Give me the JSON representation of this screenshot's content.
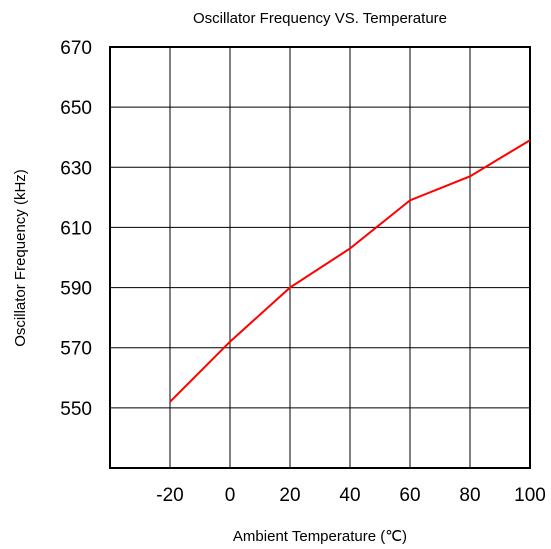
{
  "chart_data": {
    "type": "line",
    "title": "Oscillator Frequency VS. Temperature",
    "xlabel": "Ambient Temperature (℃)",
    "ylabel": "Oscillator Frequency (kHz)",
    "xlim": [
      -40,
      100
    ],
    "ylim": [
      530,
      670
    ],
    "xticks": [
      -20,
      0,
      20,
      40,
      60,
      80,
      100
    ],
    "yticks": [
      550,
      570,
      590,
      610,
      630,
      650,
      670
    ],
    "grid": true,
    "x": [
      -20,
      0,
      20,
      40,
      60,
      80,
      100
    ],
    "series": [
      {
        "values": [
          552,
          572,
          590,
          603,
          619,
          627,
          639
        ],
        "color": "#ff0000"
      }
    ]
  }
}
